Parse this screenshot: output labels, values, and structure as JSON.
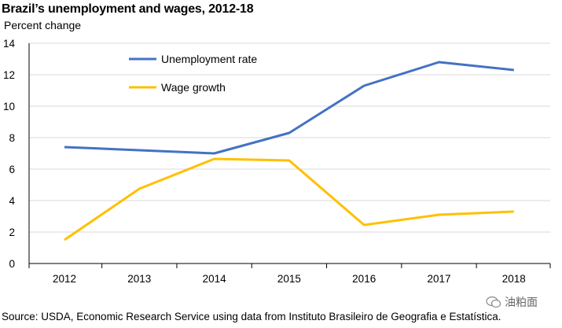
{
  "title": "Brazil’s unemployment and wages, 2012-18",
  "ylabel": "Percent change",
  "source": "Source: USDA, Economic Research Service using data from Instituto Brasileiro de Geografia e Estatística.",
  "watermark": "油粕面",
  "colors": {
    "unemployment": "#4472c4",
    "wage": "#ffc000",
    "grid": "#d9d9d9",
    "axis": "#000000"
  },
  "chart_data": {
    "type": "line",
    "title": "Brazil’s unemployment and wages, 2012-18",
    "xlabel": "",
    "ylabel": "Percent change",
    "x": [
      "2012",
      "2013",
      "2014",
      "2015",
      "2016",
      "2017",
      "2018"
    ],
    "ylim": [
      0,
      14
    ],
    "yticks": [
      0,
      2,
      4,
      6,
      8,
      10,
      12,
      14
    ],
    "grid": true,
    "legend_position": "top-left",
    "series": [
      {
        "name": "Unemployment rate",
        "color": "#4472c4",
        "values": [
          7.4,
          7.2,
          7.0,
          8.3,
          11.3,
          12.8,
          12.3
        ]
      },
      {
        "name": "Wage growth",
        "color": "#ffc000",
        "values": [
          1.5,
          4.75,
          6.65,
          6.55,
          2.45,
          3.1,
          3.3
        ]
      }
    ]
  }
}
